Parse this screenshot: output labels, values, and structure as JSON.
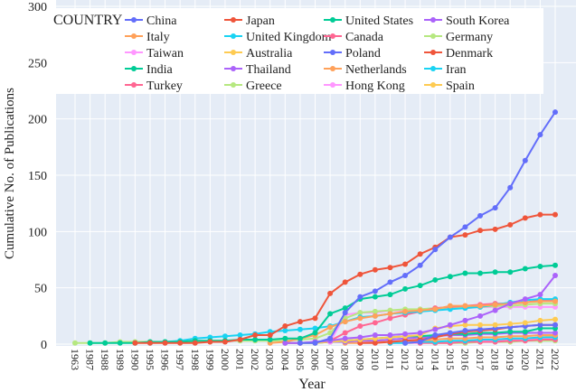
{
  "chart_data": {
    "type": "line",
    "title": "",
    "xlabel": "Year",
    "ylabel": "Cumulative No. of Publications",
    "ylim": [
      0,
      300
    ],
    "yticks": [
      0,
      50,
      100,
      150,
      200,
      250,
      300
    ],
    "grid": true,
    "legend_title": "COUNTRY",
    "legend_placement": "top-inside",
    "categories": [
      "1963",
      "1987",
      "1988",
      "1989",
      "1990",
      "1995",
      "1996",
      "1997",
      "1998",
      "1999",
      "2000",
      "2001",
      "2002",
      "2003",
      "2004",
      "2005",
      "2006",
      "2007",
      "2008",
      "2009",
      "2010",
      "2011",
      "2012",
      "2013",
      "2014",
      "2015",
      "2016",
      "2017",
      "2018",
      "2019",
      "2020",
      "2021",
      "2022"
    ],
    "series": [
      {
        "name": "China",
        "color": "#636efa",
        "values": [
          null,
          null,
          null,
          null,
          null,
          null,
          null,
          null,
          null,
          null,
          null,
          null,
          null,
          null,
          null,
          1,
          1,
          5,
          28,
          42,
          47,
          55,
          61,
          70,
          84,
          95,
          104,
          114,
          121,
          139,
          163,
          186,
          206
        ]
      },
      {
        "name": "Japan",
        "color": "#EF553B",
        "values": [
          null,
          null,
          null,
          null,
          1,
          1,
          1,
          1,
          1,
          2,
          2,
          4,
          8,
          8,
          16,
          20,
          23,
          45,
          55,
          62,
          66,
          68,
          71,
          80,
          86,
          95,
          97,
          101,
          102,
          106,
          112,
          115,
          115
        ]
      },
      {
        "name": "United States",
        "color": "#00cc96",
        "values": [
          null,
          1,
          1,
          1,
          1,
          2,
          2,
          2,
          3,
          3,
          3,
          4,
          4,
          4,
          5,
          5,
          10,
          27,
          32,
          40,
          42,
          44,
          49,
          52,
          57,
          60,
          63,
          63,
          64,
          64,
          67,
          69,
          70
        ]
      },
      {
        "name": "South Korea",
        "color": "#ab63fa",
        "values": [
          null,
          null,
          null,
          null,
          null,
          null,
          null,
          null,
          null,
          null,
          null,
          null,
          null,
          null,
          1,
          1,
          2,
          3,
          5,
          6,
          8,
          8,
          9,
          10,
          13,
          17,
          21,
          25,
          30,
          36,
          40,
          44,
          61
        ]
      },
      {
        "name": "Italy",
        "color": "#FFA15A",
        "values": [
          null,
          null,
          null,
          null,
          null,
          null,
          null,
          null,
          null,
          null,
          null,
          null,
          null,
          1,
          2,
          5,
          8,
          15,
          20,
          23,
          25,
          27,
          29,
          30,
          31,
          34,
          34,
          34,
          35,
          36,
          37,
          38,
          38
        ]
      },
      {
        "name": "United Kingdom",
        "color": "#19d3f3",
        "values": [
          null,
          null,
          null,
          null,
          null,
          1,
          2,
          3,
          5,
          6,
          7,
          8,
          9,
          11,
          12,
          13,
          14,
          16,
          20,
          24,
          25,
          27,
          28,
          29,
          30,
          31,
          32,
          33,
          35,
          37,
          39,
          40,
          40
        ]
      },
      {
        "name": "Canada",
        "color": "#FF6692",
        "values": [
          null,
          null,
          null,
          null,
          null,
          null,
          null,
          null,
          null,
          null,
          null,
          null,
          null,
          null,
          1,
          1,
          2,
          3,
          10,
          16,
          19,
          23,
          26,
          29,
          32,
          33,
          34,
          35,
          36,
          36,
          37,
          39,
          39
        ]
      },
      {
        "name": "Germany",
        "color": "#B6E880",
        "values": [
          1,
          1,
          1,
          2,
          2,
          2,
          2,
          2,
          2,
          3,
          3,
          3,
          3,
          3,
          3,
          4,
          5,
          10,
          23,
          28,
          29,
          30,
          31,
          31,
          32,
          32,
          33,
          33,
          34,
          34,
          35,
          36,
          36
        ]
      },
      {
        "name": "Taiwan",
        "color": "#FF97FF",
        "values": [
          null,
          null,
          null,
          null,
          null,
          null,
          null,
          null,
          null,
          null,
          null,
          null,
          null,
          null,
          null,
          null,
          null,
          2,
          26,
          28,
          28,
          30,
          30,
          31,
          31,
          32,
          32,
          33,
          33,
          33,
          33,
          33,
          33
        ]
      },
      {
        "name": "Australia",
        "color": "#FECB52",
        "values": [
          null,
          null,
          null,
          null,
          null,
          null,
          null,
          null,
          null,
          null,
          null,
          null,
          null,
          null,
          null,
          1,
          1,
          2,
          3,
          4,
          5,
          6,
          7,
          8,
          14,
          16,
          17,
          17,
          17,
          18,
          19,
          21,
          22
        ]
      },
      {
        "name": "Poland",
        "color": "#636efa",
        "values": [
          null,
          null,
          null,
          null,
          null,
          null,
          null,
          null,
          null,
          null,
          null,
          null,
          null,
          null,
          null,
          null,
          null,
          null,
          null,
          null,
          null,
          null,
          1,
          2,
          8,
          10,
          12,
          13,
          14,
          15,
          16,
          17,
          17
        ]
      },
      {
        "name": "Denmark",
        "color": "#EF553B",
        "values": [
          null,
          null,
          null,
          null,
          null,
          null,
          null,
          null,
          null,
          null,
          null,
          null,
          null,
          null,
          null,
          null,
          null,
          null,
          null,
          1,
          1,
          2,
          3,
          4,
          6,
          9,
          11,
          12,
          13,
          15,
          16,
          17,
          17
        ]
      },
      {
        "name": "India",
        "color": "#00cc96",
        "values": [
          null,
          null,
          null,
          null,
          null,
          null,
          null,
          null,
          null,
          null,
          null,
          null,
          null,
          null,
          1,
          1,
          1,
          2,
          3,
          4,
          5,
          6,
          7,
          7,
          8,
          9,
          9,
          10,
          10,
          11,
          11,
          14,
          14
        ]
      },
      {
        "name": "Thailand",
        "color": "#ab63fa",
        "values": [
          null,
          null,
          null,
          null,
          null,
          null,
          null,
          null,
          null,
          null,
          null,
          null,
          null,
          null,
          null,
          null,
          1,
          2,
          2,
          3,
          3,
          4,
          5,
          6,
          7,
          8,
          8,
          9,
          9,
          10,
          10,
          10,
          10
        ]
      },
      {
        "name": "Netherlands",
        "color": "#FFA15A",
        "values": [
          null,
          null,
          null,
          null,
          null,
          null,
          null,
          null,
          null,
          null,
          null,
          null,
          null,
          null,
          null,
          null,
          null,
          null,
          1,
          1,
          2,
          2,
          3,
          3,
          4,
          5,
          5,
          6,
          6,
          7,
          7,
          8,
          8
        ]
      },
      {
        "name": "Iran",
        "color": "#19d3f3",
        "values": [
          null,
          null,
          null,
          null,
          null,
          null,
          null,
          null,
          null,
          null,
          null,
          null,
          null,
          null,
          null,
          null,
          null,
          null,
          null,
          null,
          null,
          1,
          1,
          2,
          2,
          3,
          3,
          4,
          4,
          5,
          5,
          6,
          6
        ]
      },
      {
        "name": "Turkey",
        "color": "#FF6692",
        "values": [
          null,
          null,
          null,
          null,
          null,
          null,
          null,
          null,
          null,
          null,
          null,
          null,
          null,
          null,
          null,
          null,
          null,
          null,
          null,
          null,
          null,
          null,
          null,
          1,
          1,
          1,
          2,
          2,
          2,
          3,
          3,
          4,
          4
        ]
      },
      {
        "name": "Greece",
        "color": "#B6E880",
        "values": [
          null,
          null,
          null,
          null,
          null,
          null,
          null,
          null,
          null,
          null,
          null,
          null,
          null,
          null,
          null,
          null,
          null,
          null,
          null,
          null,
          null,
          null,
          null,
          null,
          1,
          1,
          1,
          2,
          2,
          2,
          3,
          3,
          3
        ]
      },
      {
        "name": "Hong Kong",
        "color": "#FF97FF",
        "values": [
          null,
          null,
          null,
          null,
          null,
          null,
          null,
          null,
          null,
          null,
          null,
          null,
          null,
          null,
          null,
          null,
          null,
          null,
          null,
          null,
          null,
          1,
          1,
          1,
          2,
          2,
          3,
          3,
          3,
          4,
          4,
          5,
          5
        ]
      },
      {
        "name": "Spain",
        "color": "#FECB52",
        "values": [
          null,
          null,
          null,
          null,
          null,
          null,
          null,
          null,
          null,
          null,
          null,
          null,
          null,
          null,
          null,
          null,
          null,
          null,
          null,
          null,
          null,
          null,
          1,
          1,
          2,
          2,
          3,
          4,
          4,
          5,
          5,
          6,
          7
        ]
      }
    ]
  }
}
